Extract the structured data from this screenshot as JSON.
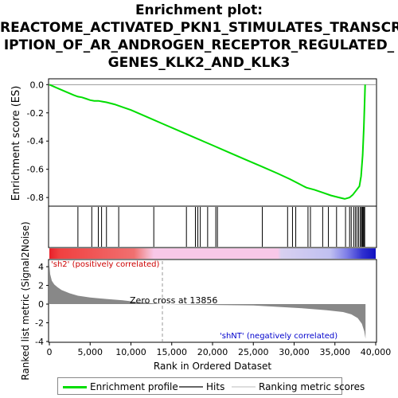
{
  "title_lines": [
    "Enrichment plot:",
    "REACTOME_ACTIVATED_PKN1_STIMULATES_TRANSCR",
    "IPTION_OF_AR_ANDROGEN_RECEPTOR_REGULATED_",
    "GENES_KLK2_AND_KLK3"
  ],
  "colors": {
    "enrichment": "#00dd00",
    "hits": "#000000",
    "pos_band": "#e8202a",
    "neg_band": "#1010c0",
    "metric_fill": "#888888"
  },
  "chart_data": [
    {
      "type": "line",
      "name": "enrichment-profile",
      "ylabel": "Enrichment score (ES)",
      "ylim": [
        -0.85,
        0.03
      ],
      "yticks": [
        "0.0",
        "-0.2",
        "-0.4",
        "-0.6",
        "-0.8"
      ],
      "ytick_values": [
        0.0,
        -0.2,
        -0.4,
        -0.6,
        -0.8
      ],
      "x": [
        0,
        1000,
        2000,
        3000,
        3500,
        4000,
        4500,
        5000,
        5500,
        6000,
        6500,
        7000,
        8000,
        9000,
        10000,
        12000,
        14000,
        16000,
        18000,
        20000,
        22000,
        24000,
        26000,
        28000,
        29500,
        30500,
        31500,
        32500,
        33500,
        34500,
        35500,
        36200,
        36800,
        37200,
        37600,
        38000,
        38200,
        38400,
        38550,
        38650,
        38700
      ],
      "y": [
        0.0,
        -0.025,
        -0.05,
        -0.075,
        -0.085,
        -0.09,
        -0.1,
        -0.11,
        -0.115,
        -0.115,
        -0.12,
        -0.125,
        -0.14,
        -0.16,
        -0.18,
        -0.23,
        -0.28,
        -0.33,
        -0.38,
        -0.43,
        -0.48,
        -0.53,
        -0.58,
        -0.63,
        -0.67,
        -0.7,
        -0.73,
        -0.745,
        -0.765,
        -0.785,
        -0.8,
        -0.81,
        -0.8,
        -0.78,
        -0.75,
        -0.72,
        -0.65,
        -0.5,
        -0.3,
        -0.1,
        0.0
      ]
    },
    {
      "type": "bar",
      "name": "hits",
      "hit_positions": [
        3500,
        5200,
        6000,
        6400,
        7000,
        8500,
        12800,
        16800,
        17900,
        18200,
        18500,
        19400,
        20400,
        20600,
        26100,
        29200,
        29800,
        30200,
        31700,
        32000,
        33500,
        34200,
        35200,
        36300,
        36800,
        37000,
        37300,
        37500,
        37700,
        37900,
        38100,
        38250,
        38350,
        38450,
        38550,
        38650
      ]
    },
    {
      "type": "area",
      "name": "ranked-list-metric",
      "ylabel": "Ranked list metric (Signal2Noise)",
      "xlabel": "Rank in Ordered Dataset",
      "xlim": [
        0,
        40000
      ],
      "ylim": [
        -4,
        4.6
      ],
      "xticks": [
        "0",
        "5,000",
        "10,000",
        "15,000",
        "20,000",
        "25,000",
        "30,000",
        "35,000",
        "40,000"
      ],
      "xtick_values": [
        0,
        5000,
        10000,
        15000,
        20000,
        25000,
        30000,
        35000,
        40000
      ],
      "yticks": [
        "4",
        "2",
        "0",
        "-2",
        "-4"
      ],
      "ytick_values": [
        4,
        2,
        0,
        -2,
        -4
      ],
      "x": [
        0,
        100,
        300,
        600,
        1000,
        1500,
        2500,
        3500,
        5000,
        7000,
        9000,
        11000,
        13856,
        17000,
        21000,
        25000,
        28000,
        31000,
        34000,
        36000,
        37000,
        37800,
        38300,
        38600,
        38750
      ],
      "y": [
        4.3,
        3.2,
        2.5,
        2.1,
        1.8,
        1.5,
        1.15,
        0.9,
        0.7,
        0.55,
        0.4,
        0.2,
        0.0,
        -0.05,
        -0.1,
        -0.15,
        -0.3,
        -0.45,
        -0.65,
        -0.85,
        -1.1,
        -1.5,
        -2.1,
        -2.9,
        -3.7
      ],
      "zero_cross_label": "Zero cross at 13856",
      "zero_cross": 13856,
      "pos_label": "'sh2' (positively correlated)",
      "neg_label": "'shNT' (negatively correlated)"
    }
  ],
  "legend": {
    "items": [
      "Enrichment profile",
      "Hits",
      "Ranking metric scores"
    ]
  }
}
